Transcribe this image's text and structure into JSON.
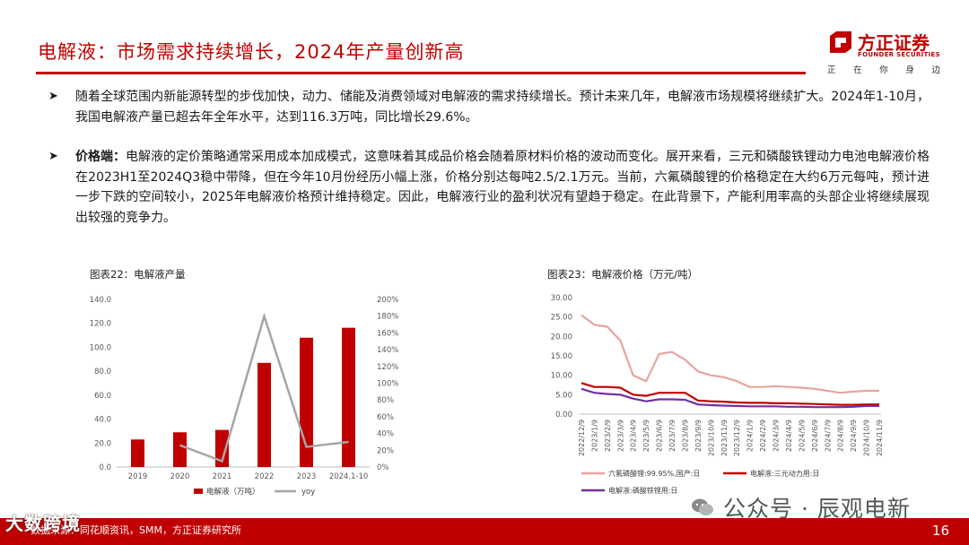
{
  "slide": {
    "title": "电解液：市场需求持续增长，2024年产量创新高",
    "page_number": "16"
  },
  "logo": {
    "name": "方正证券",
    "english": "FOUNDER SECURITIES",
    "slogan": [
      "正",
      "在",
      "你",
      "身",
      "边"
    ]
  },
  "bullets": [
    {
      "lead": "",
      "text": "随着全球范围内新能源转型的步伐加快，动力、储能及消费领域对电解液的需求持续增长。预计未来几年，电解液市场规模将继续扩大。2024年1-10月，我国电解液产量已超去年全年水平，达到116.3万吨，同比增长29.6%。"
    },
    {
      "lead": "价格端：",
      "text": "电解液的定价策略通常采用成本加成模式，这意味着其成品价格会随着原材料价格的波动而变化。展开来看，三元和磷酸铁锂动力电池电解液价格在2023H1至2024Q3稳中带降，但在今年10月份经历小幅上涨，价格分别达每吨2.5/2.1万元。当前，六氟磷酸锂的价格稳定在大约6万元每吨，预计进一步下跌的空间较小，2025年电解液价格预计维持稳定。因此，电解液行业的盈利状况有望趋于稳定。在此背景下，产能利用率高的头部企业将继续展现出较强的竞争力。"
    }
  ],
  "figures": {
    "fig22_title": "图表22：电解液产量",
    "fig23_title": "图表23：电解液价格（万元/吨）"
  },
  "chart_data": [
    {
      "type": "bar",
      "title": "图表22：电解液产量",
      "categories": [
        "2019",
        "2020",
        "2021",
        "2022",
        "2023",
        "2024.1-10"
      ],
      "series": [
        {
          "name": "电解液（万吨）",
          "type": "bar",
          "axis": "left",
          "color": "#c00000",
          "values": [
            23,
            29,
            31,
            87,
            108,
            116.3
          ]
        },
        {
          "name": "yoy",
          "type": "line",
          "axis": "right",
          "color": "#a6a6a6",
          "values": [
            null,
            26,
            7,
            180,
            24,
            30
          ]
        }
      ],
      "left_ticks": [
        "0.0",
        "20.0",
        "40.0",
        "60.0",
        "80.0",
        "100.0",
        "120.0",
        "140.0"
      ],
      "right_ticks": [
        "0%",
        "20%",
        "40%",
        "60%",
        "80%",
        "100%",
        "120%",
        "140%",
        "160%",
        "180%",
        "200%"
      ],
      "ylim_left": [
        0,
        140
      ],
      "ylim_right": [
        0,
        200
      ],
      "legend": [
        "电解液（万吨）",
        "yoy"
      ],
      "legend_position": "bottom"
    },
    {
      "type": "line",
      "title": "图表23：电解液价格（万元/吨）",
      "x_labels": [
        "2022/12/9",
        "2023/1/9",
        "2023/2/9",
        "2023/3/9",
        "2023/4/9",
        "2023/5/9",
        "2023/6/9",
        "2023/7/9",
        "2023/8/9",
        "2023/9/9",
        "2023/10/9",
        "2023/11/9",
        "2023/12/9",
        "2024/1/9",
        "2024/2/9",
        "2024/3/9",
        "2024/4/9",
        "2024/5/9",
        "2024/6/9",
        "2024/7/9",
        "2024/8/9",
        "2024/9/9",
        "2024/10/9",
        "2024/11/9"
      ],
      "y_ticks": [
        "0.00",
        "5.00",
        "10.00",
        "15.00",
        "20.00",
        "25.00",
        "30.00"
      ],
      "ylim": [
        0,
        30
      ],
      "series": [
        {
          "name": "六氟磷酸锂:99.95%,国产:日",
          "color": "#e8a3a0",
          "values": [
            25.5,
            23,
            22.5,
            19,
            10,
            8.5,
            15.5,
            16,
            14,
            11,
            10,
            9.5,
            8.5,
            7,
            7,
            7.2,
            7,
            6.8,
            6.5,
            6,
            5.5,
            5.8,
            6,
            6
          ]
        },
        {
          "name": "电解液:三元动力用:日",
          "color": "#c00000",
          "values": [
            8,
            7,
            7,
            6.8,
            5,
            4.7,
            5.5,
            5.5,
            5.5,
            3.5,
            3.3,
            3.2,
            3,
            2.9,
            2.9,
            2.8,
            2.8,
            2.7,
            2.6,
            2.5,
            2.4,
            2.4,
            2.5,
            2.5
          ]
        },
        {
          "name": "电解液:磷酸铁锂用:日",
          "color": "#7030a0",
          "values": [
            6.5,
            5.5,
            5.2,
            5,
            4,
            3.3,
            3.8,
            3.8,
            3.7,
            2.5,
            2.3,
            2.2,
            2.1,
            2,
            2,
            2,
            1.9,
            1.9,
            1.8,
            1.8,
            1.8,
            1.9,
            2.1,
            2.1
          ]
        }
      ],
      "legend_position": "bottom"
    }
  ],
  "footer": {
    "source": "数据来源：同花顺资讯，SMM，方正证券研究所"
  },
  "watermarks": {
    "left": "大数跨境",
    "right": "公众号 · 辰观电新"
  }
}
